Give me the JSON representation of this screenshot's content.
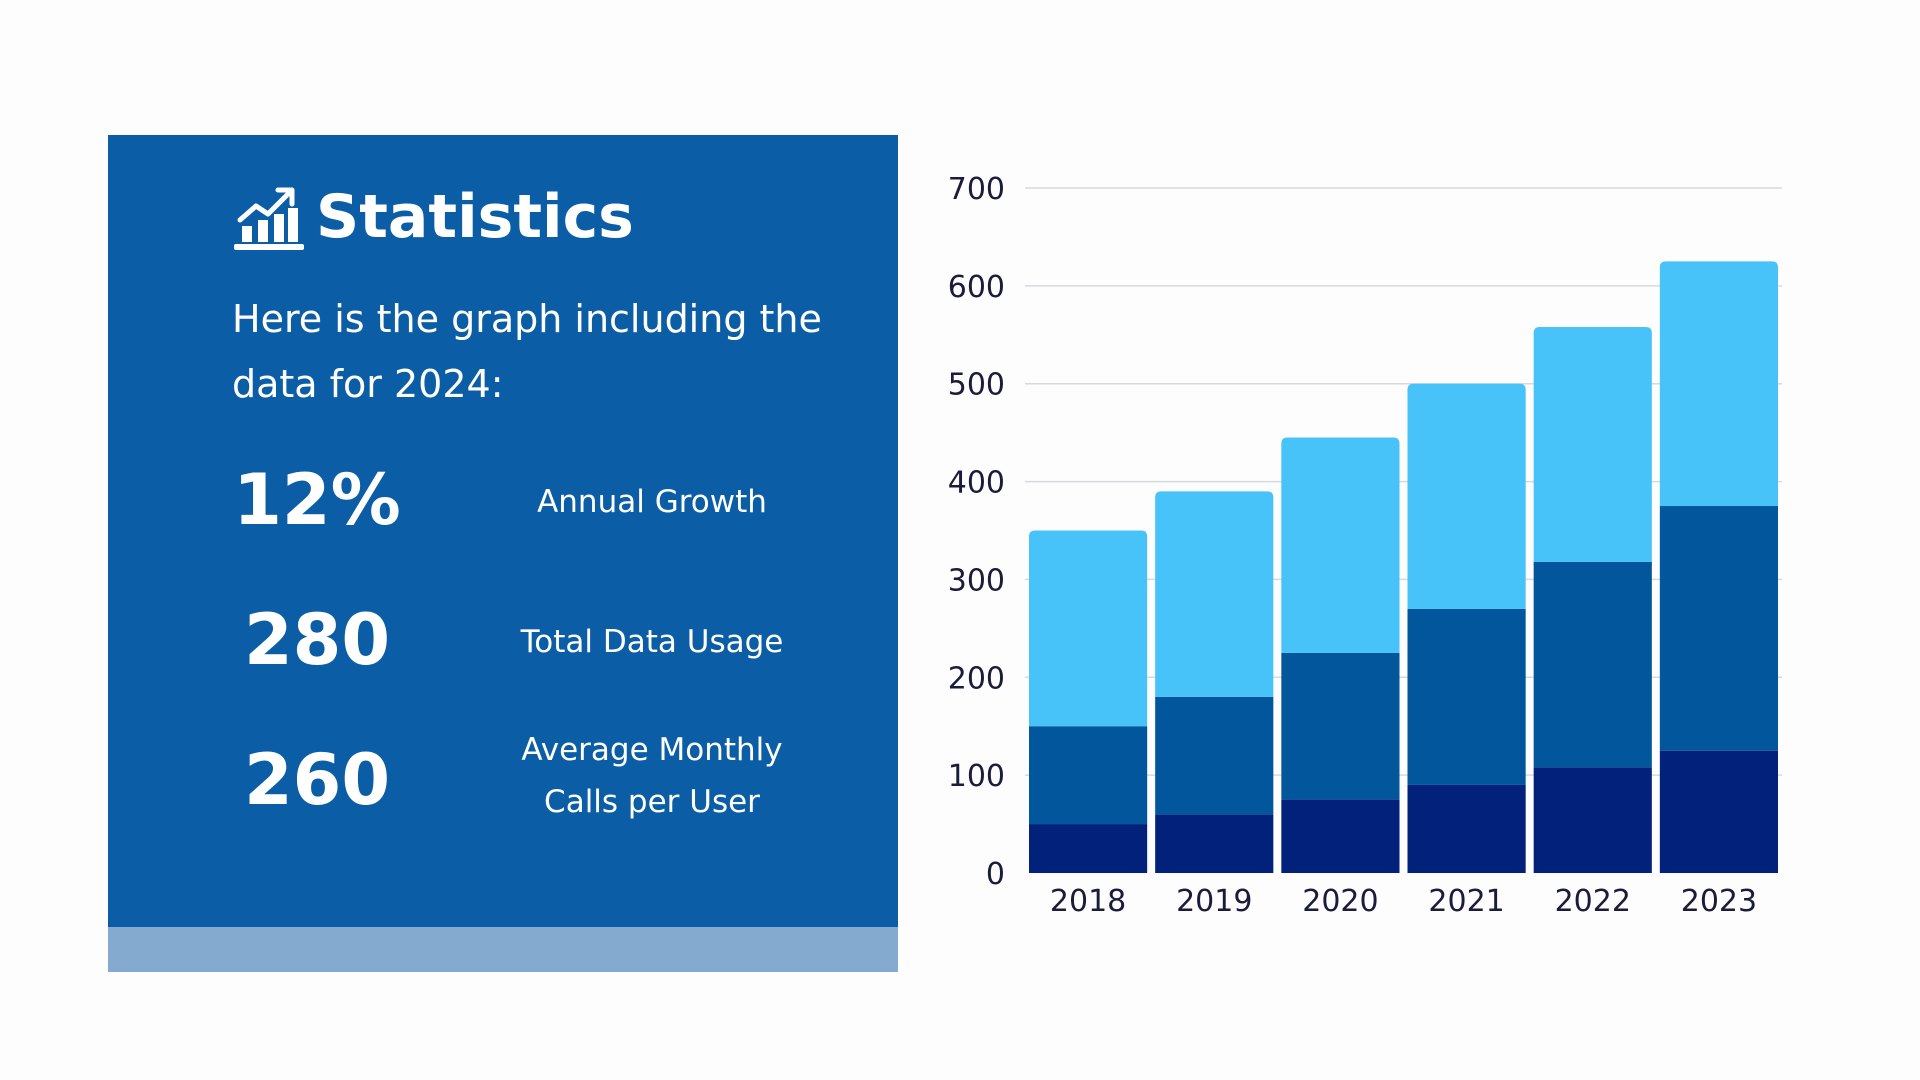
{
  "panel": {
    "title": "Statistics",
    "icon": "chart-growth-icon",
    "subtitle": "Here is the graph including the data for 2024:",
    "stats": [
      {
        "value": "12%",
        "label": "Annual Growth"
      },
      {
        "value": "280",
        "label": "Total Data Usage"
      },
      {
        "value": "260",
        "label": "Average Monthly Calls per User"
      }
    ],
    "colors": {
      "panel": "#0b5ea6",
      "strip": "#84abcf"
    }
  },
  "chart_data": {
    "type": "bar",
    "stacked": true,
    "categories": [
      "2018",
      "2019",
      "2020",
      "2021",
      "2022",
      "2023"
    ],
    "series": [
      {
        "values": [
          50,
          60,
          75,
          90,
          108,
          125
        ],
        "color": "#02217a"
      },
      {
        "values": [
          100,
          120,
          150,
          180,
          210,
          250
        ],
        "color": "#02569c"
      },
      {
        "values": [
          200,
          210,
          220,
          230,
          240,
          250
        ],
        "color": "#47c3f9"
      }
    ],
    "ylim": [
      0,
      700
    ],
    "yticks": [
      0,
      100,
      200,
      300,
      400,
      500,
      600,
      700
    ],
    "grid": true,
    "legend": "none"
  }
}
